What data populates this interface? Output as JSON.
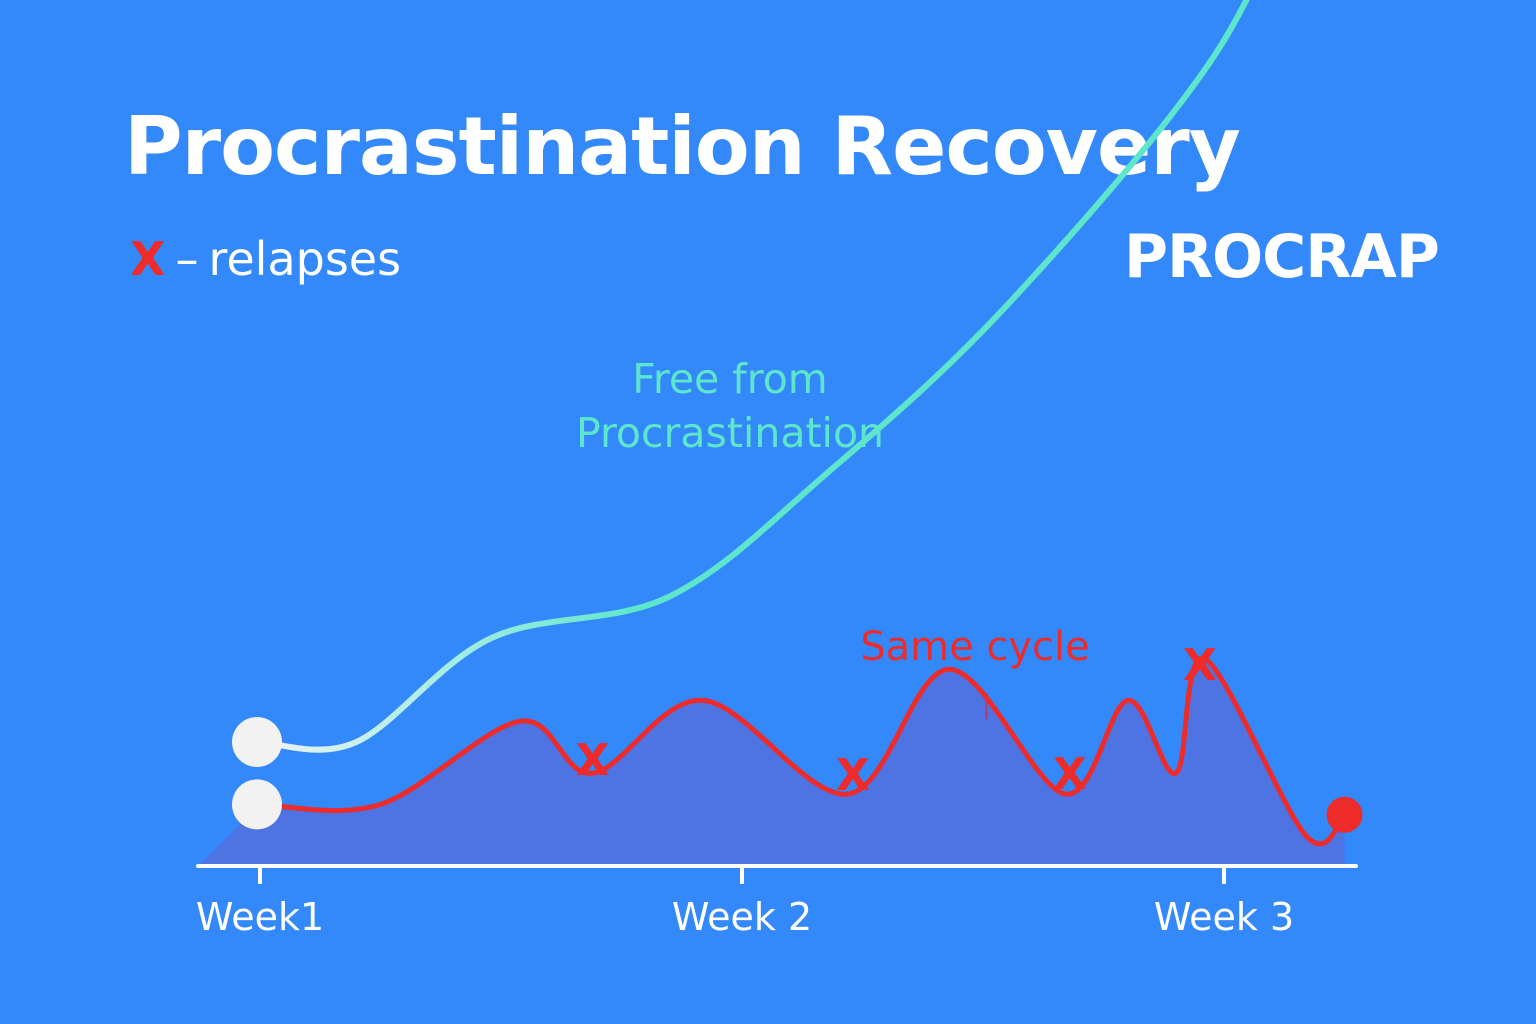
{
  "chart_data": {
    "type": "line",
    "title": "Procrastination Recovery",
    "legend": {
      "marker": "X",
      "separator": "–",
      "text": "relapses"
    },
    "brand": "PROCRAP",
    "x_ticks": [
      "Week1",
      "Week 2",
      "Week 3"
    ],
    "xlim": [
      0.86,
      3.25
    ],
    "ylim": [
      0,
      100
    ],
    "grid": false,
    "series": [
      {
        "name": "Free from Procrastination",
        "color": "#5ee6cc",
        "start_color": "#eef3f8",
        "x": [
          1.0,
          1.2,
          1.48,
          1.85,
          2.18,
          2.55,
          2.98,
          3.18
        ],
        "y": [
          10,
          10,
          20,
          24,
          36,
          52,
          76,
          96
        ]
      },
      {
        "name": "",
        "color": "#ee2b2b",
        "x": [
          1.0,
          1.25,
          1.54,
          1.69,
          1.92,
          2.22,
          2.43,
          2.67,
          2.8,
          2.9,
          2.96,
          3.17,
          3.25
        ],
        "y": [
          4,
          4,
          12,
          7,
          14,
          5,
          17,
          5,
          14,
          7,
          18,
          1,
          3
        ]
      }
    ],
    "relapses": [
      {
        "x": 1.69,
        "label": "X"
      },
      {
        "x": 2.23,
        "label": "X"
      },
      {
        "x": 2.68,
        "label": "X"
      },
      {
        "x": 2.95,
        "label": "X"
      }
    ],
    "annotation": "Same cycle"
  }
}
